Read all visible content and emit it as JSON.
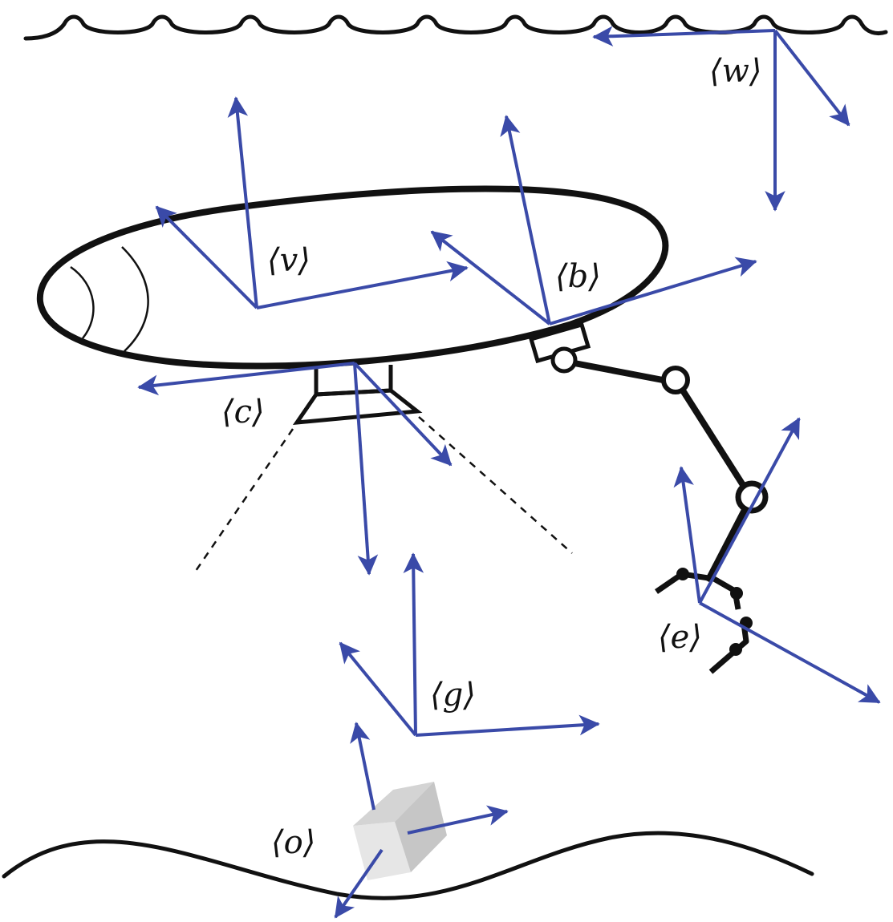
{
  "colors": {
    "frame_arrow": "#3a4aa8",
    "outline": "#111111",
    "object_light": "#e6e6e6",
    "object_mid": "#d4d4d4",
    "object_dark": "#c6c6c6"
  },
  "frames": {
    "world": "⟨w⟩",
    "vehicle": "⟨v⟩",
    "body": "⟨b⟩",
    "camera": "⟨c⟩",
    "end_effector": "⟨e⟩",
    "goal": "⟨g⟩",
    "object": "⟨o⟩"
  }
}
